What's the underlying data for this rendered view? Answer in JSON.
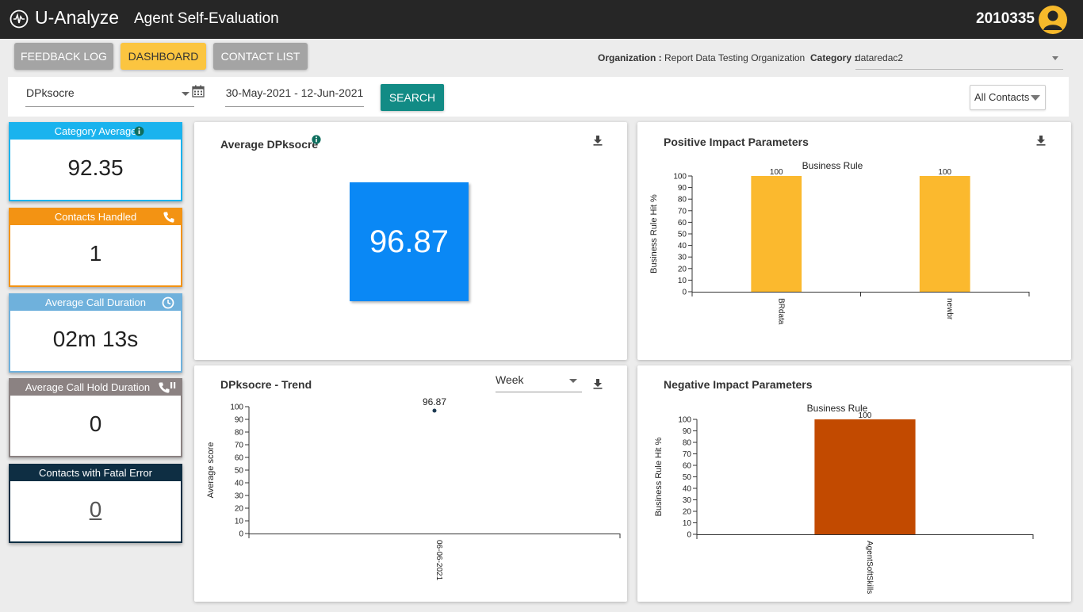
{
  "header": {
    "brand": "U-Analyze",
    "title": "Agent Self-Evaluation",
    "user_id": "2010335",
    "logo_icon": "waveform-circle-icon",
    "avatar_icon": "user-avatar-icon"
  },
  "nav": {
    "feedback_log": "FEEDBACK LOG",
    "dashboard": "DASHBOARD",
    "contact_list": "CONTACT LIST",
    "active": "dashboard"
  },
  "org": {
    "org_label": "Organization :",
    "org_value": "Report Data Testing Organization",
    "category_label": "Category :",
    "category_value": "dataredac2"
  },
  "filters": {
    "metric": "DPksocre",
    "date_range": "30-May-2021 - 12-Jun-2021",
    "search_label": "SEARCH",
    "contacts": "All Contacts"
  },
  "kpis": [
    {
      "label": "Category Average",
      "value": "92.35",
      "color": "#1ab3ee",
      "icon": "info-icon"
    },
    {
      "label": "Contacts Handled",
      "value": "1",
      "color": "#f39313",
      "icon": "phone-icon"
    },
    {
      "label": "Average Call Duration",
      "value": "02m 13s",
      "color": "#6fb1dc",
      "icon": "clock-icon"
    },
    {
      "label": "Average Call Hold Duration",
      "value": "0",
      "color": "#8b8282",
      "icon": "phone-hold-icon"
    },
    {
      "label": "Contacts with Fatal Error",
      "value": "0",
      "color": "#0e2e43",
      "icon": ""
    }
  ],
  "avg_panel": {
    "title": "Average DPksocre",
    "value": "96.87",
    "tile_color": "#0a88f5"
  },
  "trend_panel": {
    "title": "DPksocre - Trend",
    "period": "Week"
  },
  "positive_panel": {
    "title": "Positive Impact Parameters"
  },
  "negative_panel": {
    "title": "Negative Impact Parameters"
  },
  "chart_data": [
    {
      "type": "bar",
      "title": "Business Rule",
      "ylabel": "Business Rule Hit %",
      "categories": [
        "BRdata",
        "newbr"
      ],
      "values": [
        100,
        100
      ],
      "data_labels": [
        "100",
        "100"
      ],
      "yticks": [
        "0",
        "10",
        "20",
        "30",
        "40",
        "50",
        "60",
        "70",
        "80",
        "90",
        "100"
      ],
      "ylim": [
        0,
        100
      ],
      "color": "#fbb92e"
    },
    {
      "type": "scatter",
      "title": "",
      "ylabel": "Average score",
      "categories": [
        "06-06-2021"
      ],
      "values": [
        96.87
      ],
      "data_labels": [
        "96.87"
      ],
      "yticks": [
        "0",
        "10",
        "20",
        "30",
        "40",
        "50",
        "60",
        "70",
        "80",
        "90",
        "100"
      ],
      "ylim": [
        0,
        100
      ],
      "color": "#1d3a52"
    },
    {
      "type": "bar",
      "title": "Business Rule",
      "ylabel": "Business Rule Hit %",
      "categories": [
        "AgentSoftSkills"
      ],
      "values": [
        100
      ],
      "data_labels": [
        "100"
      ],
      "yticks": [
        "0",
        "10",
        "20",
        "30",
        "40",
        "50",
        "60",
        "70",
        "80",
        "90",
        "100"
      ],
      "ylim": [
        0,
        100
      ],
      "color": "#c24a00"
    }
  ]
}
